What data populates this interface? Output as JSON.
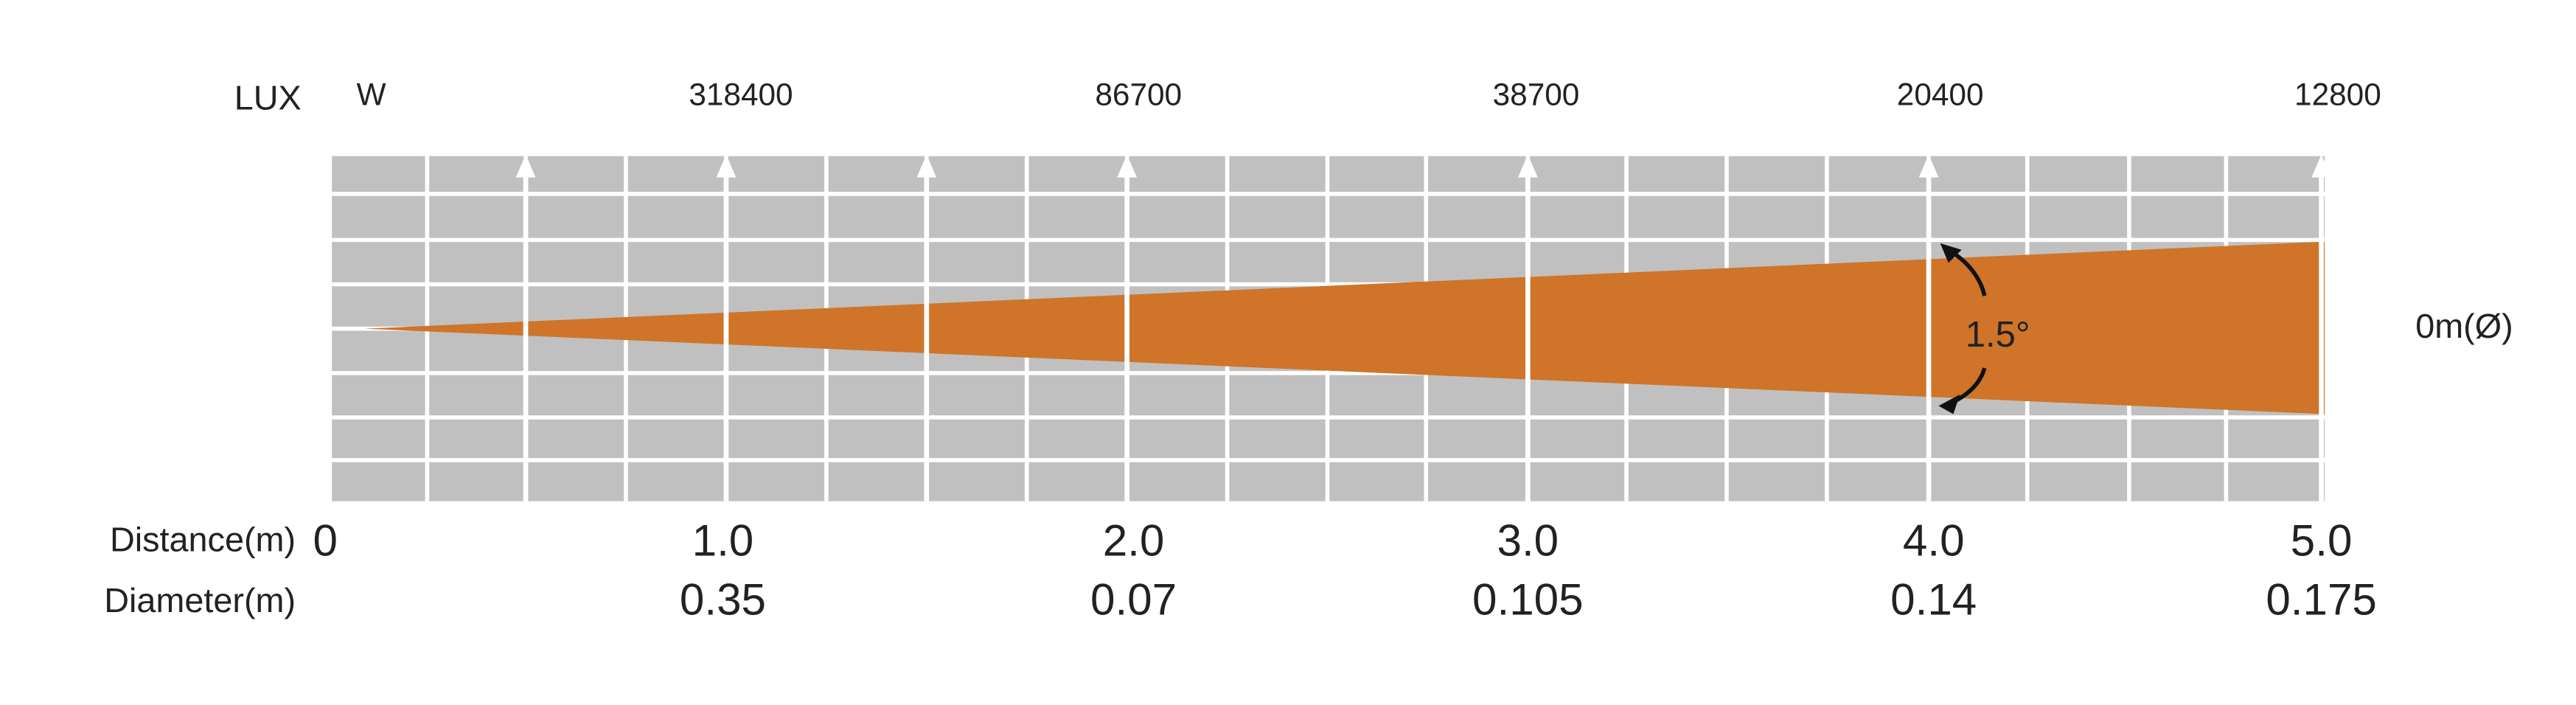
{
  "header": {
    "lux_label": "LUX",
    "lux_unit": "W",
    "lux": [
      "318400",
      "86700",
      "38700",
      "20400",
      "12800"
    ]
  },
  "beam": {
    "angle": "1.5°",
    "diameter_label": "0m(Ø)"
  },
  "rows": {
    "distance_label": "Distance(m)",
    "distance": [
      "0",
      "1.0",
      "2.0",
      "3.0",
      "4.0",
      "5.0"
    ],
    "diameter_label": "Diameter(m)",
    "diameter": [
      "0.35",
      "0.07",
      "0.105",
      "0.14",
      "0.175"
    ]
  }
}
